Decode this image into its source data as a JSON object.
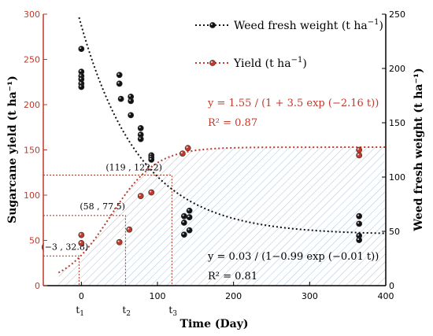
{
  "chart_data": {
    "type": "scatter",
    "xlabel": "Time (Day)",
    "ylabel_left": "Sugarcane yield (t ha⁻¹)",
    "ylabel_right": "Weed fresh weight (t ha⁻¹)",
    "xlim": [
      -50,
      400
    ],
    "ylim_left": [
      0,
      300
    ],
    "ylim_right": [
      0,
      250
    ],
    "x_ticks": [
      0,
      100,
      200,
      300,
      400
    ],
    "y_left_ticks": [
      0,
      50,
      100,
      150,
      200,
      250,
      300
    ],
    "y_right_ticks": [
      0,
      50,
      100,
      150,
      200,
      250
    ],
    "colors": {
      "weed": "#111111",
      "yield": "#c0392b",
      "left_axis": "#c0392b",
      "right_axis": "#000000",
      "hatch": "#a9c4dd"
    },
    "series": [
      {
        "name": "Weed fresh weight (t ha⁻¹)",
        "axis": "right",
        "points": [
          {
            "x": 0,
            "y": 218
          },
          {
            "x": 0,
            "y": 197
          },
          {
            "x": 0,
            "y": 193
          },
          {
            "x": 0,
            "y": 190
          },
          {
            "x": 0,
            "y": 186
          },
          {
            "x": 0,
            "y": 183
          },
          {
            "x": 50,
            "y": 194
          },
          {
            "x": 50,
            "y": 186
          },
          {
            "x": 52,
            "y": 172
          },
          {
            "x": 65,
            "y": 174
          },
          {
            "x": 65,
            "y": 170
          },
          {
            "x": 65,
            "y": 157
          },
          {
            "x": 78,
            "y": 145
          },
          {
            "x": 78,
            "y": 139
          },
          {
            "x": 78,
            "y": 135
          },
          {
            "x": 92,
            "y": 120
          },
          {
            "x": 92,
            "y": 118
          },
          {
            "x": 92,
            "y": 116
          },
          {
            "x": 135,
            "y": 64
          },
          {
            "x": 135,
            "y": 58
          },
          {
            "x": 135,
            "y": 47
          },
          {
            "x": 142,
            "y": 69
          },
          {
            "x": 142,
            "y": 63
          },
          {
            "x": 142,
            "y": 51
          },
          {
            "x": 365,
            "y": 64
          },
          {
            "x": 365,
            "y": 57
          },
          {
            "x": 365,
            "y": 46
          },
          {
            "x": 365,
            "y": 42
          }
        ]
      },
      {
        "name": "Yield (t ha⁻¹)",
        "axis": "left",
        "points": [
          {
            "x": 0,
            "y": 56
          },
          {
            "x": 0,
            "y": 47
          },
          {
            "x": 50,
            "y": 48
          },
          {
            "x": 63,
            "y": 62
          },
          {
            "x": 78,
            "y": 99
          },
          {
            "x": 92,
            "y": 103
          },
          {
            "x": 133,
            "y": 146
          },
          {
            "x": 140,
            "y": 152
          },
          {
            "x": 365,
            "y": 150
          },
          {
            "x": 365,
            "y": 144
          }
        ]
      }
    ],
    "annotations": {
      "yield_equation": "y = 1.55 / (1 + 3.5 exp (−2.16 t))",
      "yield_r2": "R² = 0.87",
      "weed_equation": "y = 0.03 / (1−0.99 exp (−0.01 t))",
      "weed_r2": "R² = 0.81",
      "critical_points": [
        {
          "label": "(−3 , 32.8)",
          "x": -3,
          "y": 32.8
        },
        {
          "label": "(58 , 77.5)",
          "x": 58,
          "y": 77.5
        },
        {
          "label": "(119 , 122.2)",
          "x": 119,
          "y": 122.2
        }
      ],
      "t_labels": [
        {
          "text": "t",
          "sub": "1",
          "x": -3
        },
        {
          "text": "t",
          "sub": "2",
          "x": 58
        },
        {
          "text": "t",
          "sub": "3",
          "x": 119
        }
      ]
    },
    "legend": {
      "position": "top-right",
      "items": [
        {
          "label": "Weed fresh weight (t ha",
          "sup": "−1",
          "close": ")",
          "series": 0
        },
        {
          "label": "Yield (t ha",
          "sup": "−1",
          "close": ")",
          "series": 1
        }
      ]
    }
  }
}
